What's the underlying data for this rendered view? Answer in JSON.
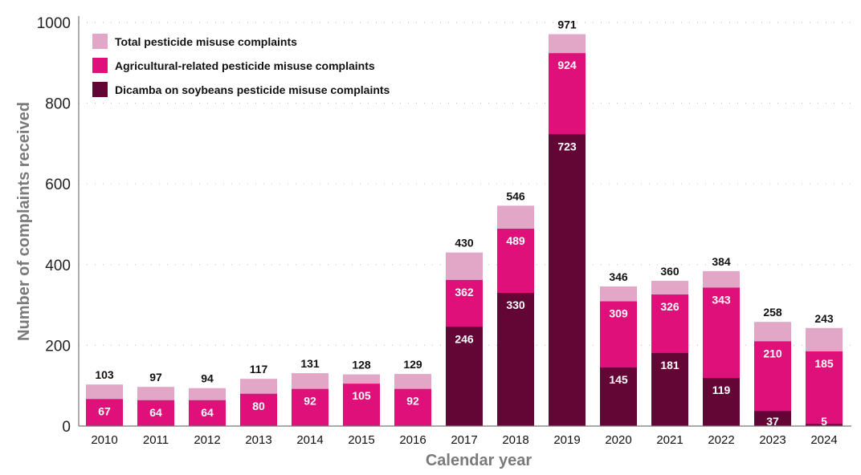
{
  "chart_data": {
    "type": "bar",
    "title": "",
    "xlabel": "Calendar year",
    "ylabel": "Number of complaints received",
    "ylim": [
      0,
      1000
    ],
    "yticks": [
      0,
      200,
      400,
      600,
      800,
      1000
    ],
    "grid": "horizontal dotted",
    "legend_placement": "top-left",
    "categories": [
      "2010",
      "2011",
      "2012",
      "2013",
      "2014",
      "2015",
      "2016",
      "2017",
      "2018",
      "2019",
      "2020",
      "2021",
      "2022",
      "2023",
      "2024"
    ],
    "series": [
      {
        "name": "Total pesticide misuse complaints",
        "color": "#e2a6c6",
        "values": [
          103,
          97,
          94,
          117,
          131,
          128,
          129,
          430,
          546,
          971,
          346,
          360,
          384,
          258,
          243
        ]
      },
      {
        "name": "Agricultural-related pesticide misuse complaints",
        "color": "#e0107a",
        "values": [
          67,
          64,
          64,
          80,
          92,
          105,
          92,
          362,
          489,
          924,
          309,
          326,
          343,
          210,
          185
        ]
      },
      {
        "name": "Dicamba on soybeans pesticide misuse complaints",
        "color": "#630636",
        "values": [
          null,
          null,
          null,
          null,
          null,
          null,
          null,
          246,
          330,
          723,
          145,
          181,
          119,
          37,
          5
        ]
      }
    ]
  }
}
